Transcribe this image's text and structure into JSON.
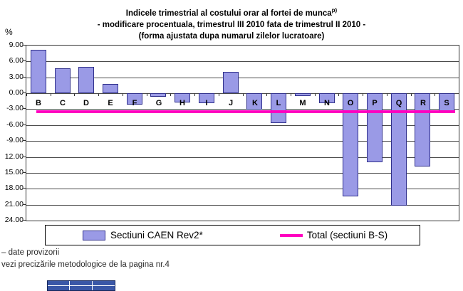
{
  "chart_data": {
    "type": "bar",
    "title_lines": [
      "Indicele trimestrial al costului orar al fortei de munca",
      "- modificare procentuala, trimestrul III 2010 fata de trimestrul II 2010 -",
      "(forma ajustata dupa numarul zilelor lucratoare)"
    ],
    "title_superscript": "p)",
    "ylabel": "%",
    "categories": [
      "B",
      "C",
      "D",
      "E",
      "F",
      "G",
      "H",
      "I",
      "J",
      "K",
      "L",
      "M",
      "N",
      "O",
      "P",
      "Q",
      "R",
      "S"
    ],
    "values": [
      8.2,
      4.7,
      5.0,
      1.7,
      -2.1,
      -0.6,
      -1.7,
      -1.9,
      4.0,
      -3.1,
      -5.6,
      -0.5,
      -1.8,
      -19.5,
      -13.0,
      -21.2,
      -13.8,
      -3.4
    ],
    "total_line_value": -3.5,
    "ylim": [
      -24,
      9
    ],
    "ytick_step": 3,
    "ytick_labels_visible": [
      "9.00",
      "6.00",
      "3.00",
      "0.00",
      "-3.00",
      "-6.00",
      "-9.00",
      "12.00",
      "15.00",
      "18.00",
      "21.00",
      "24.00"
    ],
    "grid": "horizontal",
    "bar_color": "#9A9AE6",
    "bar_border_color": "#30308C",
    "total_line_color": "#FF00C0",
    "legend_position": "bottom"
  },
  "legend": {
    "series_label": "Sectiuni CAEN Rev2*",
    "total_label": "Total (sectiuni B-S)"
  },
  "footnotes": {
    "provisional": "– date provizorii",
    "methodology": "vezi precizările metodologice de la pagina nr.4"
  }
}
